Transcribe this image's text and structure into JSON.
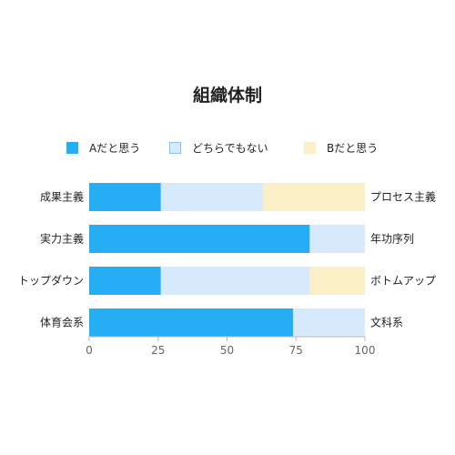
{
  "chart_data": {
    "type": "bar",
    "orientation": "horizontal-stacked",
    "title": "組織体制",
    "categories_left": [
      "成果主義",
      "実力主義",
      "トップダウン",
      "体育会系"
    ],
    "categories_right": [
      "プロセス主義",
      "年功序列",
      "ボトムアップ",
      "文科系"
    ],
    "series": [
      {
        "name": "Aだと思う",
        "values": [
          26,
          80,
          26,
          74
        ],
        "color": "#25aef5",
        "border": "#25aef5"
      },
      {
        "name": "どちらでもない",
        "values": [
          37,
          20,
          54,
          26
        ],
        "color": "#d7e9fc",
        "border": "#7fc6f2"
      },
      {
        "name": "Bだと思う",
        "values": [
          37,
          0,
          20,
          0
        ],
        "color": "#faefc6",
        "border": "#faefc6"
      }
    ],
    "xlim": [
      0,
      100
    ],
    "xticks": [
      "0",
      "25",
      "50",
      "75",
      "100"
    ],
    "grid": false,
    "legend_position": "top"
  }
}
